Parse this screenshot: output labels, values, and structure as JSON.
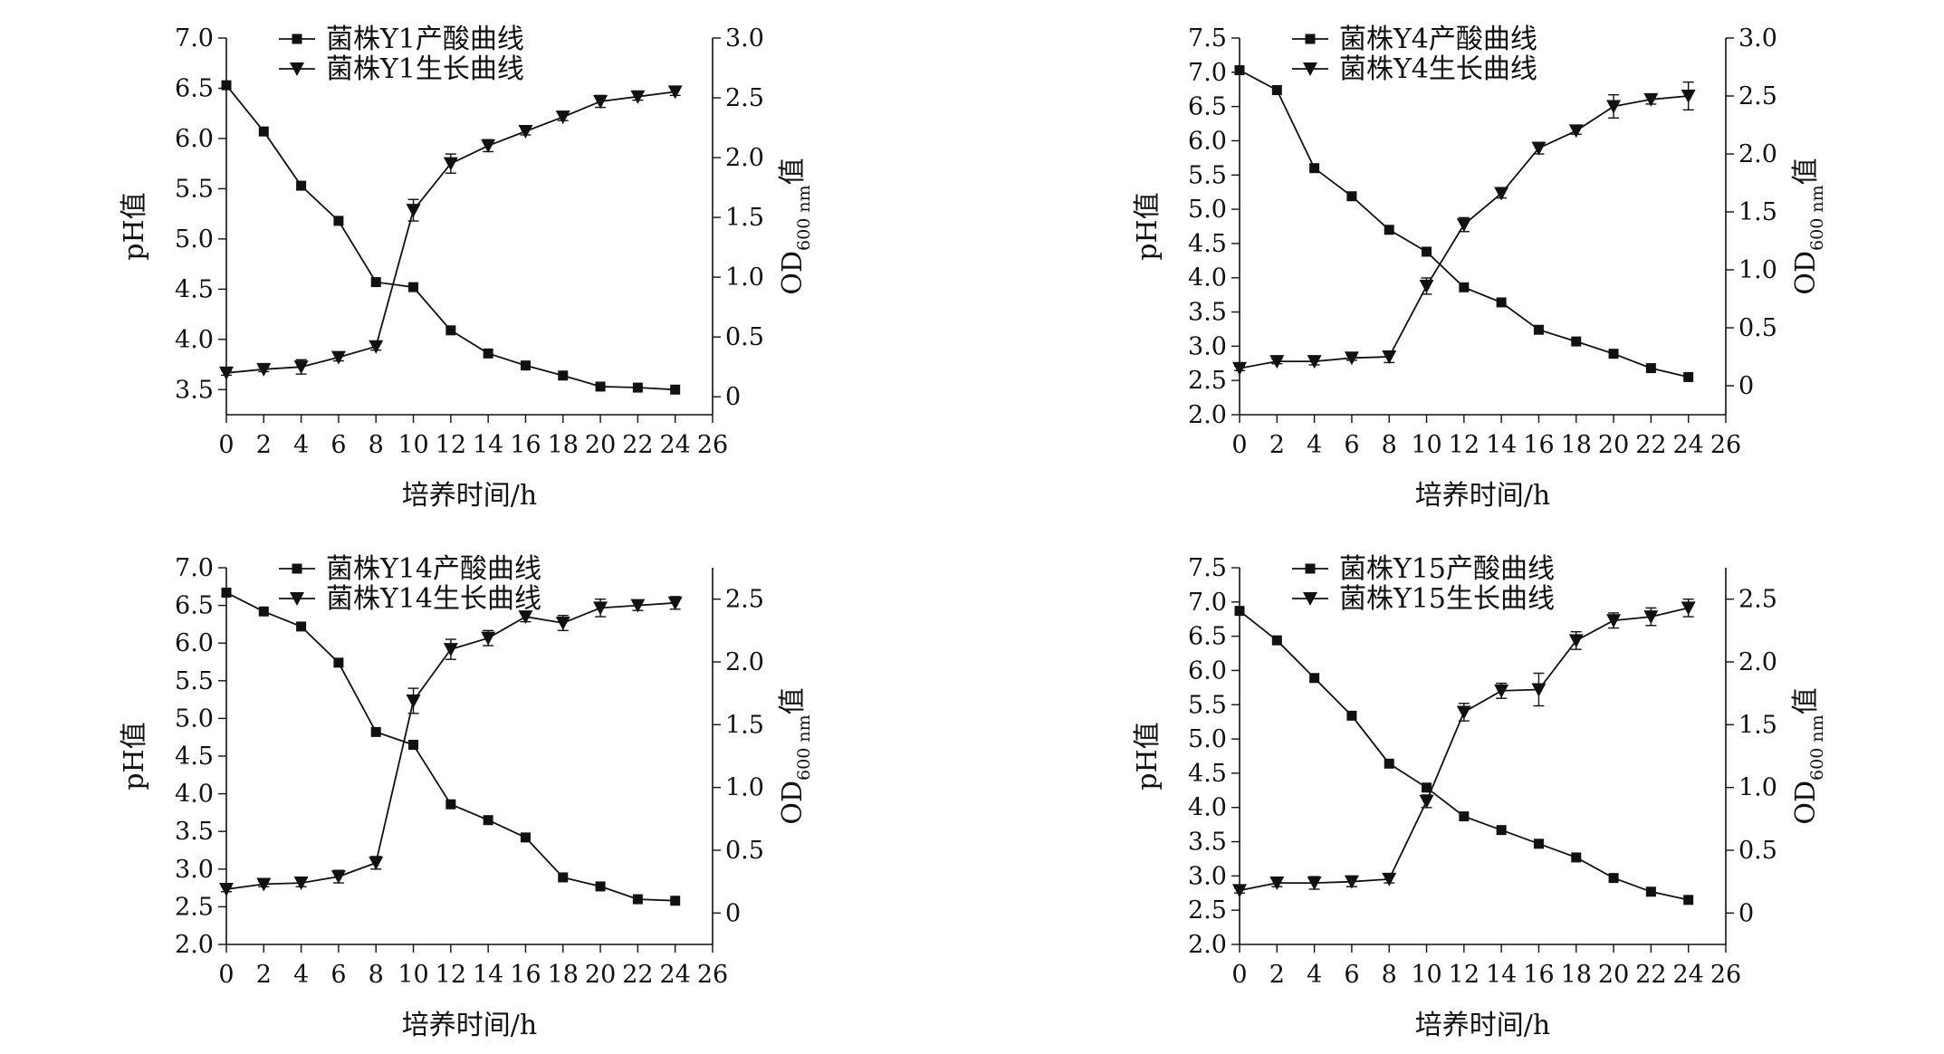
{
  "figure": {
    "xlabel": "培养时间/h",
    "ylabel_left": "pH值",
    "ylabel_right": {
      "main": "OD",
      "sub": "600 nm",
      "suffix": "值"
    },
    "colors": {
      "line": "#111111",
      "background": "#ffffff"
    }
  },
  "chart_data": [
    {
      "type": "line",
      "title": "",
      "x": [
        0,
        2,
        4,
        6,
        8,
        10,
        12,
        14,
        16,
        18,
        20,
        22,
        24
      ],
      "xlim": [
        0,
        26
      ],
      "xticks": [
        "0",
        "2",
        "4",
        "6",
        "8",
        "10",
        "12",
        "14",
        "16",
        "18",
        "20",
        "22",
        "24",
        "26"
      ],
      "ylim_left": [
        3.25,
        7.0
      ],
      "yticks_left": [
        "3.5",
        "4.0",
        "4.5",
        "5.0",
        "5.5",
        "6.0",
        "6.5",
        "7.0"
      ],
      "ylim_right": [
        -0.15,
        3.0
      ],
      "yticks_right": [
        "0",
        "0.5",
        "1.0",
        "1.5",
        "2.0",
        "2.5",
        "3.0"
      ],
      "series": [
        {
          "name": "菌株Y1产酸曲线",
          "axis": "left",
          "marker": "square",
          "values": [
            6.53,
            6.07,
            5.53,
            5.18,
            4.57,
            4.52,
            4.09,
            3.86,
            3.74,
            3.64,
            3.53,
            3.52,
            3.5
          ],
          "errors": [
            0,
            0,
            0,
            0,
            0,
            0,
            0,
            0,
            0,
            0,
            0,
            0,
            0
          ]
        },
        {
          "name": "菌株Y1生长曲线",
          "axis": "right",
          "marker": "triangle-down",
          "values": [
            0.2,
            0.23,
            0.25,
            0.33,
            0.42,
            1.56,
            1.95,
            2.1,
            2.22,
            2.34,
            2.47,
            2.51,
            2.55
          ],
          "errors": [
            0.02,
            0.02,
            0.06,
            0.03,
            0.03,
            0.09,
            0.08,
            0.05,
            0.03,
            0.03,
            0.05,
            0.03,
            0.03
          ]
        }
      ]
    },
    {
      "type": "line",
      "title": "",
      "x": [
        0,
        2,
        4,
        6,
        8,
        10,
        12,
        14,
        16,
        18,
        20,
        22,
        24
      ],
      "xlim": [
        0,
        26
      ],
      "xticks": [
        "0",
        "2",
        "4",
        "6",
        "8",
        "10",
        "12",
        "14",
        "16",
        "18",
        "20",
        "22",
        "24",
        "26"
      ],
      "ylim_left": [
        2.0,
        7.5
      ],
      "yticks_left": [
        "2.0",
        "2.5",
        "3.0",
        "3.5",
        "4.0",
        "4.5",
        "5.0",
        "5.5",
        "6.0",
        "6.5",
        "7.0",
        "7.5"
      ],
      "ylim_right": [
        -0.25,
        3.0
      ],
      "yticks_right": [
        "0",
        "0.5",
        "1.0",
        "1.5",
        "2.0",
        "2.5",
        "3.0"
      ],
      "series": [
        {
          "name": "菌株Y4产酸曲线",
          "axis": "left",
          "marker": "square",
          "values": [
            7.03,
            6.74,
            5.6,
            5.19,
            4.7,
            4.38,
            3.86,
            3.64,
            3.24,
            3.07,
            2.89,
            2.68,
            2.55
          ],
          "errors": [
            0,
            0,
            0,
            0,
            0,
            0,
            0,
            0,
            0,
            0,
            0,
            0,
            0
          ]
        },
        {
          "name": "菌株Y4生长曲线",
          "axis": "right",
          "marker": "triangle-down",
          "values": [
            0.15,
            0.21,
            0.21,
            0.24,
            0.25,
            0.86,
            1.39,
            1.66,
            2.05,
            2.2,
            2.41,
            2.47,
            2.5
          ],
          "errors": [
            0.02,
            0.02,
            0.03,
            0.02,
            0.05,
            0.07,
            0.06,
            0.04,
            0.05,
            0.03,
            0.1,
            0.04,
            0.12
          ]
        }
      ]
    },
    {
      "type": "line",
      "title": "",
      "x": [
        0,
        2,
        4,
        6,
        8,
        10,
        12,
        14,
        16,
        18,
        20,
        22,
        24
      ],
      "xlim": [
        0,
        26
      ],
      "xticks": [
        "0",
        "2",
        "4",
        "6",
        "8",
        "10",
        "12",
        "14",
        "16",
        "18",
        "20",
        "22",
        "24",
        "26"
      ],
      "ylim_left": [
        2.0,
        7.0
      ],
      "yticks_left": [
        "2.0",
        "2.5",
        "3.0",
        "3.5",
        "4.0",
        "4.5",
        "5.0",
        "5.5",
        "6.0",
        "6.5",
        "7.0"
      ],
      "ylim_right": [
        -0.25,
        2.75
      ],
      "yticks_right": [
        "0",
        "0.5",
        "1.0",
        "1.5",
        "2.0",
        "2.5"
      ],
      "series": [
        {
          "name": "菌株Y14产酸曲线",
          "axis": "left",
          "marker": "square",
          "values": [
            6.67,
            6.42,
            6.22,
            5.74,
            4.82,
            4.65,
            3.86,
            3.65,
            3.42,
            2.89,
            2.77,
            2.6,
            2.58
          ],
          "errors": [
            0,
            0,
            0,
            0,
            0,
            0,
            0,
            0,
            0,
            0,
            0,
            0,
            0
          ]
        },
        {
          "name": "菌株Y14生长曲线",
          "axis": "right",
          "marker": "triangle-down",
          "values": [
            0.19,
            0.23,
            0.24,
            0.29,
            0.4,
            1.69,
            2.1,
            2.19,
            2.36,
            2.31,
            2.43,
            2.45,
            2.47
          ],
          "errors": [
            0.02,
            0.02,
            0.03,
            0.05,
            0.05,
            0.1,
            0.08,
            0.06,
            0.04,
            0.06,
            0.07,
            0.04,
            0.05
          ]
        }
      ]
    },
    {
      "type": "line",
      "title": "",
      "x": [
        0,
        2,
        4,
        6,
        8,
        10,
        12,
        14,
        16,
        18,
        20,
        22,
        24
      ],
      "xlim": [
        0,
        26
      ],
      "xticks": [
        "0",
        "2",
        "4",
        "6",
        "8",
        "10",
        "12",
        "14",
        "16",
        "18",
        "20",
        "22",
        "24",
        "26"
      ],
      "ylim_left": [
        2.0,
        7.5
      ],
      "yticks_left": [
        "2.0",
        "2.5",
        "3.0",
        "3.5",
        "4.0",
        "4.5",
        "5.0",
        "5.5",
        "6.0",
        "6.5",
        "7.0",
        "7.5"
      ],
      "ylim_right": [
        -0.25,
        2.75
      ],
      "yticks_right": [
        "0",
        "0.5",
        "1.0",
        "1.5",
        "2.0",
        "2.5"
      ],
      "series": [
        {
          "name": "菌株Y15产酸曲线",
          "axis": "left",
          "marker": "square",
          "values": [
            6.87,
            6.44,
            5.89,
            5.34,
            4.64,
            4.29,
            3.87,
            3.67,
            3.47,
            3.27,
            2.97,
            2.77,
            2.65
          ],
          "errors": [
            0,
            0,
            0,
            0,
            0,
            0,
            0,
            0,
            0,
            0,
            0,
            0,
            0
          ]
        },
        {
          "name": "菌株Y15生长曲线",
          "axis": "right",
          "marker": "triangle-down",
          "values": [
            0.18,
            0.24,
            0.24,
            0.25,
            0.27,
            0.89,
            1.6,
            1.77,
            1.78,
            2.17,
            2.33,
            2.36,
            2.43
          ],
          "errors": [
            0.02,
            0.03,
            0.05,
            0.04,
            0.03,
            0.05,
            0.07,
            0.06,
            0.13,
            0.07,
            0.06,
            0.07,
            0.07
          ]
        }
      ]
    }
  ]
}
